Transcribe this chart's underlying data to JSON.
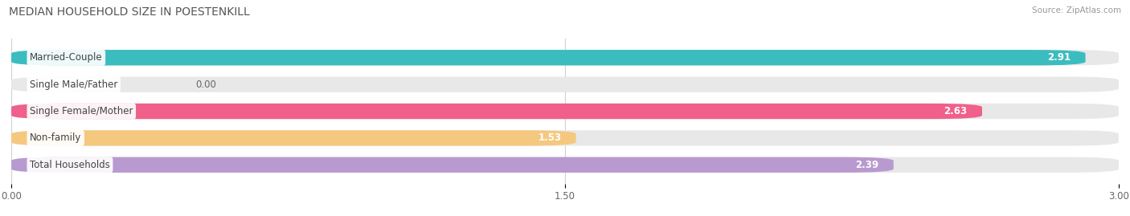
{
  "title": "MEDIAN HOUSEHOLD SIZE IN POESTENKILL",
  "source": "Source: ZipAtlas.com",
  "categories": [
    "Married-Couple",
    "Single Male/Father",
    "Single Female/Mother",
    "Non-family",
    "Total Households"
  ],
  "values": [
    2.91,
    0.0,
    2.63,
    1.53,
    2.39
  ],
  "bar_colors": [
    "#3bbcbf",
    "#a8b8e8",
    "#f0608a",
    "#f5c880",
    "#b89ad0"
  ],
  "bar_bg_color": "#e8e8e8",
  "xlim": [
    0,
    3.0
  ],
  "xticks": [
    0.0,
    1.5,
    3.0
  ],
  "xtick_labels": [
    "0.00",
    "1.50",
    "3.00"
  ],
  "title_fontsize": 10,
  "label_fontsize": 8.5,
  "value_fontsize": 8.5,
  "background_color": "#ffffff",
  "bar_height": 0.58,
  "grid_color": "#d0d0d0",
  "label_text_color": "#444444",
  "value_text_color_inside": "#ffffff",
  "value_text_color_outside": "#666666"
}
